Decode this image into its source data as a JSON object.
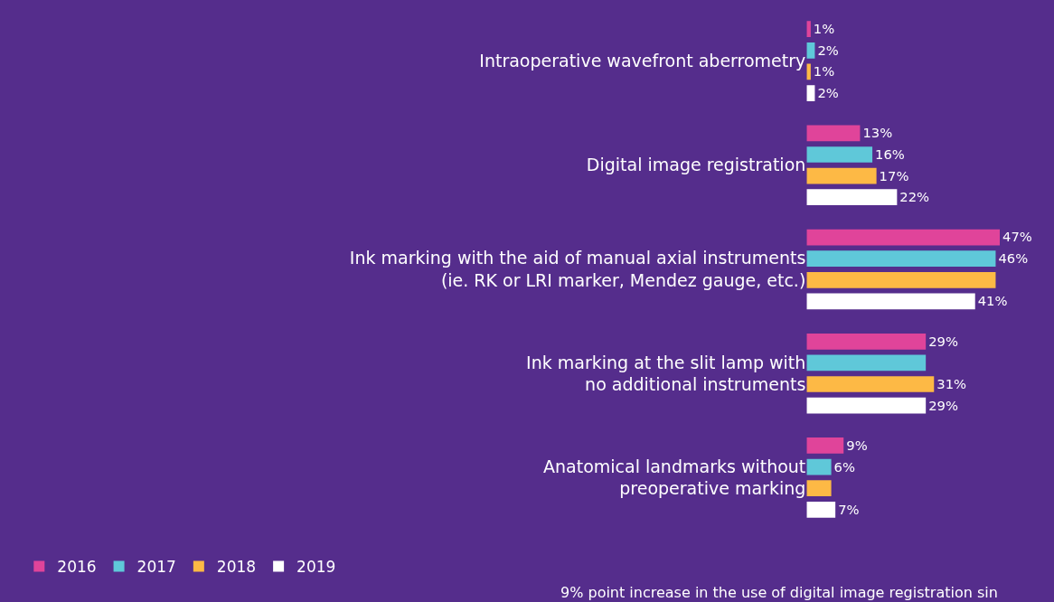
{
  "chart_data": {
    "type": "bar",
    "orientation": "horizontal",
    "data_labels": true,
    "legend": "bottom left",
    "categories": [
      "Intraoperative wavefront aberrometry",
      "Digital image registration",
      "Ink marking with the aid of manual axial instruments\n(ie. RK or LRI marker, Mendez gauge, etc.)",
      "Ink marking at the slit lamp with\nno additional instruments",
      "Anatomical landmarks without\npreoperative marking"
    ],
    "series": [
      {
        "name": "2016",
        "color": "#e0449a",
        "values": [
          1,
          13,
          47,
          29,
          9
        ],
        "value_labels": [
          "1%",
          "13%",
          "47%",
          "29%",
          "9%"
        ]
      },
      {
        "name": "2017",
        "color": "#5fc8d9",
        "values": [
          2,
          16,
          46,
          29,
          6
        ],
        "value_labels": [
          "2%",
          "16%",
          "46%",
          null,
          "6%"
        ]
      },
      {
        "name": "2018",
        "color": "#fdb945",
        "values": [
          1,
          17,
          46,
          31,
          6
        ],
        "value_labels": [
          "1%",
          "17%",
          null,
          "31%",
          null
        ]
      },
      {
        "name": "2019",
        "color": "#ffffff",
        "values": [
          2,
          22,
          41,
          29,
          7
        ],
        "value_labels": [
          "2%",
          "22%",
          "41%",
          "29%",
          "7%"
        ]
      }
    ],
    "annotations": [
      "9% point increase in the use of digital image registration sin"
    ]
  }
}
